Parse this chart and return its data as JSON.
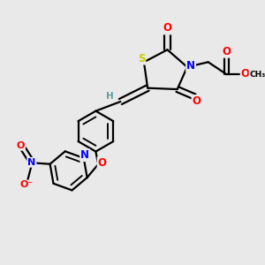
{
  "bg_color": "#e9e9e9",
  "atom_colors": {
    "C": "#000000",
    "H": "#5f9ea0",
    "N": "#0000ff",
    "O": "#ff0000",
    "S": "#cccc00"
  },
  "bond_color": "#000000",
  "bond_width": 1.6,
  "figsize": [
    3.0,
    3.0
  ],
  "dpi": 100
}
